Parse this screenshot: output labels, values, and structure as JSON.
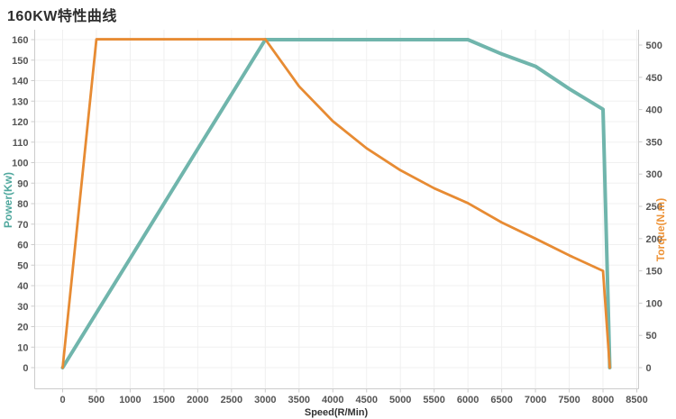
{
  "page": {
    "title": "160KW特性曲线"
  },
  "colors": {
    "power_line": "#70b5ac",
    "power_text": "#50a89e",
    "torque_line": "#e78b33",
    "torque_text": "#ed9338",
    "grid": "#f0f0f0",
    "axis": "#cccccc",
    "tick_text": "#555555",
    "title_text": "#2d2d2d"
  },
  "chart_data": {
    "type": "line",
    "title": "160KW特性曲线",
    "xlabel": "Speed(R/Min)",
    "x_ticks": [
      0,
      500,
      1000,
      1500,
      2000,
      2500,
      3000,
      3500,
      4000,
      4500,
      5000,
      5500,
      6000,
      6500,
      7000,
      7500,
      8000,
      8500
    ],
    "left_axis": {
      "label": "Power(Kw)",
      "min": 0,
      "max": 160,
      "ticks": [
        0,
        10,
        20,
        30,
        40,
        50,
        60,
        70,
        80,
        90,
        100,
        110,
        120,
        130,
        140,
        150,
        160
      ]
    },
    "right_axis": {
      "label": "Torque(N.m)",
      "min": 0,
      "max": 500,
      "ticks": [
        0,
        50,
        100,
        150,
        200,
        250,
        300,
        350,
        400,
        450,
        500
      ]
    },
    "grid": "on",
    "legend": "none",
    "series": [
      {
        "name": "Power(Kw)",
        "axis": "left",
        "x": [
          0,
          500,
          1000,
          1500,
          2000,
          2500,
          3000,
          3500,
          4000,
          4500,
          5000,
          5500,
          6000,
          6500,
          7000,
          7500,
          8000,
          8100
        ],
        "y": [
          0,
          26.7,
          53.3,
          80,
          106.7,
          133.3,
          160,
          160,
          160,
          160,
          160,
          160,
          160,
          153,
          147,
          136,
          126,
          0
        ]
      },
      {
        "name": "Torque(N.m)",
        "axis": "right",
        "x": [
          0,
          500,
          1000,
          1500,
          2000,
          2500,
          3000,
          3500,
          4000,
          4500,
          5000,
          5500,
          6000,
          6500,
          7000,
          7500,
          8000,
          8100
        ],
        "y": [
          0,
          509,
          509,
          509,
          509,
          509,
          509,
          436,
          382,
          340,
          306,
          278,
          255,
          225,
          200,
          174,
          150,
          0
        ]
      }
    ]
  }
}
